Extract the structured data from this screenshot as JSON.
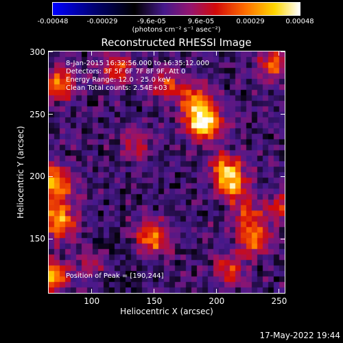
{
  "chart_data": {
    "type": "heatmap",
    "title": "Reconstructed RHESSI Image",
    "xlabel": "Heliocentric X (arcsec)",
    "ylabel": "Heliocentric Y (arcsec)",
    "xlim": [
      65,
      255
    ],
    "ylim": [
      106,
      301
    ],
    "xticks": [
      "100",
      "150",
      "200",
      "250"
    ],
    "xtick_values": [
      100,
      150,
      200,
      250
    ],
    "yticks": [
      "150",
      "200",
      "250",
      "300"
    ],
    "ytick_values": [
      150,
      200,
      250,
      300
    ],
    "colorbar": {
      "ticks": [
        "-0.00048",
        "-0.00029",
        "-9.6e-05",
        "9.6e-05",
        "0.00029",
        "0.00048"
      ],
      "range": [
        -0.00048,
        0.00048
      ],
      "unit_label": "(photons cm⁻² s⁻¹ asec⁻²)"
    },
    "annotations": [
      "8-Jan-2015 16:32:56.000 to 16:35:12.000",
      "Detectors: 3F 5F 6F 7F 8F 9F, Att 0",
      "Energy Range: 12.0 - 25.0 keV",
      "Clean     Total counts: 2.54E+03"
    ],
    "peak_label": "Position of Peak = [190,244]",
    "peak": [
      190,
      244
    ],
    "sources": [
      {
        "x": 190,
        "y": 244,
        "amp": 1.0,
        "sigma": 10
      },
      {
        "x": 182,
        "y": 262,
        "amp": 0.55,
        "sigma": 9
      },
      {
        "x": 208,
        "y": 205,
        "amp": 0.75,
        "sigma": 9
      },
      {
        "x": 214,
        "y": 190,
        "amp": 0.6,
        "sigma": 8
      },
      {
        "x": 230,
        "y": 150,
        "amp": 0.65,
        "sigma": 9
      },
      {
        "x": 225,
        "y": 170,
        "amp": 0.45,
        "sigma": 8
      },
      {
        "x": 148,
        "y": 150,
        "amp": 0.65,
        "sigma": 9
      },
      {
        "x": 75,
        "y": 275,
        "amp": 0.6,
        "sigma": 9
      },
      {
        "x": 70,
        "y": 195,
        "amp": 0.7,
        "sigma": 10
      },
      {
        "x": 72,
        "y": 165,
        "amp": 0.75,
        "sigma": 10
      },
      {
        "x": 68,
        "y": 120,
        "amp": 0.8,
        "sigma": 8
      },
      {
        "x": 120,
        "y": 287,
        "amp": 0.5,
        "sigma": 9
      },
      {
        "x": 160,
        "y": 275,
        "amp": 0.45,
        "sigma": 9
      },
      {
        "x": 245,
        "y": 290,
        "amp": 0.55,
        "sigma": 8
      },
      {
        "x": 250,
        "y": 175,
        "amp": 0.4,
        "sigma": 8
      },
      {
        "x": 135,
        "y": 225,
        "amp": 0.35,
        "sigma": 9
      },
      {
        "x": 210,
        "y": 125,
        "amp": 0.45,
        "sigma": 9
      },
      {
        "x": 100,
        "y": 130,
        "amp": 0.3,
        "sigma": 9
      }
    ],
    "grid": false
  },
  "footer": {
    "timestamp": "17-May-2022 19:44"
  }
}
